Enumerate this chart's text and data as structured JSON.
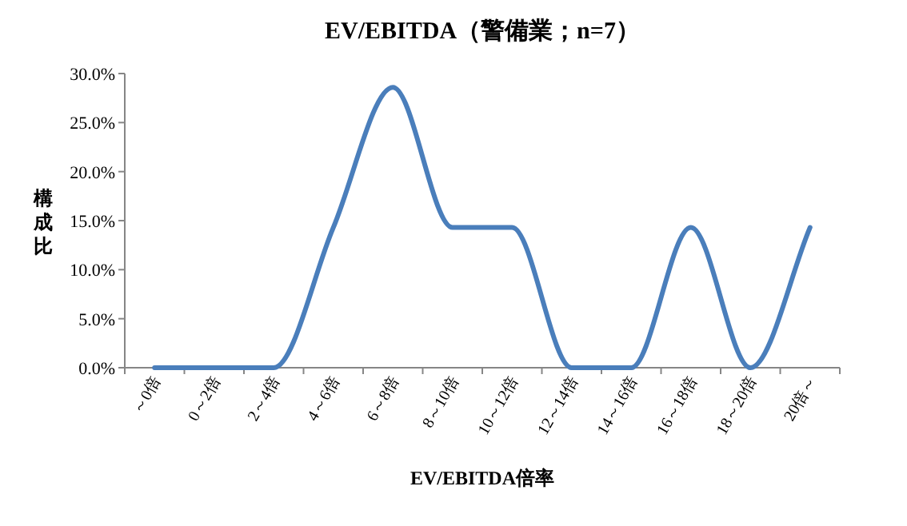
{
  "chart_data": {
    "type": "line",
    "title": "EV/EBITDA（警備業；n=7）",
    "xlabel": "EV/EBITDA倍率",
    "ylabel": "構成比",
    "categories": [
      "～0倍",
      "0～2倍",
      "2～4倍",
      "4～6倍",
      "6～8倍",
      "8～10倍",
      "10～12倍",
      "12～14倍",
      "14～16倍",
      "16～18倍",
      "18～20倍",
      "20倍～"
    ],
    "series": [
      {
        "color": "#4a7ebb",
        "values": [
          0,
          0,
          0,
          14.3,
          28.6,
          14.3,
          14.3,
          0,
          0,
          14.3,
          0,
          14.3
        ]
      }
    ],
    "ylim": [
      0,
      30
    ],
    "yticks": [
      {
        "value": 0,
        "label": "0.0%"
      },
      {
        "value": 5,
        "label": "5.0%"
      },
      {
        "value": 10,
        "label": "10.0%"
      },
      {
        "value": 15,
        "label": "15.0%"
      },
      {
        "value": 20,
        "label": "20.0%"
      },
      {
        "value": 25,
        "label": "25.0%"
      },
      {
        "value": 30,
        "label": "30.0%"
      }
    ],
    "grid": false,
    "marker": "none",
    "line_style": "solid"
  }
}
